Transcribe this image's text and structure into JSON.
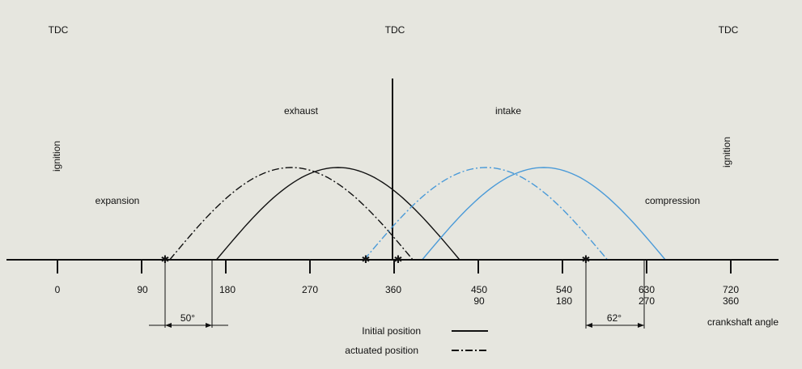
{
  "tdc_labels": [
    "TDC",
    "TDC",
    "TDC"
  ],
  "phases": {
    "exhaust": "exhaust",
    "intake": "intake",
    "expansion": "expansion",
    "compression": "compression",
    "ignition_left": "ignition",
    "ignition_right": "ignition"
  },
  "axis": {
    "upper_ticks": [
      "0",
      "90",
      "180",
      "270",
      "360",
      "450",
      "540",
      "630",
      "720"
    ],
    "lower_ticks": [
      "",
      "",
      "",
      "",
      "",
      "90",
      "180",
      "270",
      "360"
    ],
    "label": "crankshaft angle"
  },
  "dimensions": {
    "left": "50°",
    "right": "62°"
  },
  "legend": {
    "initial": "Initial position",
    "actuated": "actuated position"
  },
  "colors": {
    "background": "#e6e6df",
    "exhaust": "#111111",
    "intake": "#4a9ad8"
  },
  "curves": {
    "exhaust_initial": {
      "open": 170,
      "close": 430,
      "peak": 1.0
    },
    "exhaust_actuated": {
      "open": 120,
      "close": 380,
      "peak": 1.0
    },
    "intake_initial": {
      "open": 390,
      "close": 650,
      "peak": 1.0
    },
    "intake_actuated": {
      "open": 328,
      "close": 588,
      "peak": 1.0
    }
  }
}
